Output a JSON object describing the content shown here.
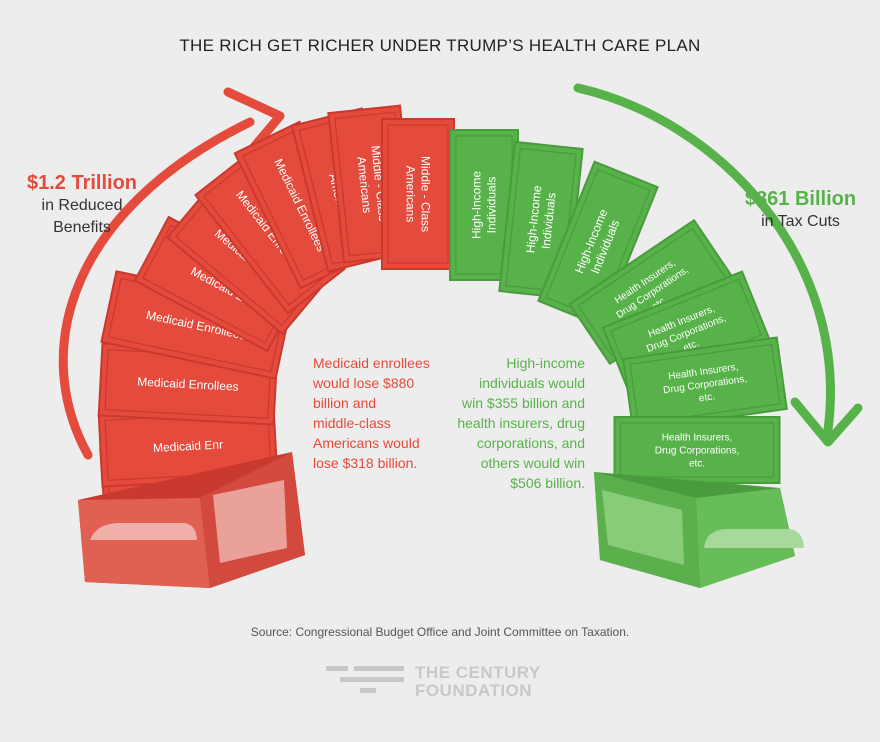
{
  "title": "THE RICH GET RICHER UNDER TRUMP’S HEALTH CARE PLAN",
  "left_total": {
    "amount": "$1.2 Trillion",
    "line1": "in Reduced",
    "line2": "Benefits"
  },
  "right_total": {
    "amount": "$861 Billion",
    "line1": "in Tax Cuts"
  },
  "red_note": [
    "Medicaid enrollees",
    "would lose $880",
    "billion and",
    "middle-class",
    "Americans would",
    "lose $318 billion."
  ],
  "green_note": [
    "High-income",
    "individuals would",
    "win $355 billion and",
    "health insurers, drug",
    "corporations, and",
    "others would win",
    "$506 billion."
  ],
  "source": "Source: Congressional Budget Office and Joint Committee on Taxation.",
  "logo": {
    "line1": "THE CENTURY",
    "line2": "FOUNDATION"
  },
  "colors": {
    "red": "#e54b3c",
    "red_dark": "#c9392d",
    "green": "#58b24a",
    "green_dark": "#4a9a3e",
    "background": "#ededed"
  },
  "bills": {
    "medicaid": "Medicaid Enrollees",
    "middle_class": [
      "Middle - Class",
      "Americans"
    ],
    "high_income": [
      "High-Income",
      "Individuals"
    ],
    "insurers": [
      "Health Insurers,",
      "Drug Corporations,",
      "etc."
    ]
  },
  "left_bills": [
    {
      "lines": [
        "Medicaid Enrollees"
      ],
      "visible": "Medicaid Enr"
    },
    {
      "lines": [
        "Medicaid Enrollees"
      ],
      "visible": "Medicaid Enr"
    },
    {
      "lines": [
        "Medicaid Enrollees"
      ]
    },
    {
      "lines": [
        "Medicaid Enrollees"
      ]
    },
    {
      "lines": [
        "Medicaid Enrollees"
      ],
      "visible": "Medicaid E"
    },
    {
      "lines": [
        "Medicaid Enrollees"
      ],
      "visible": "Medicaid Enroll"
    },
    {
      "lines": [
        "Medicaid Enrollees"
      ]
    },
    {
      "lines": [
        "Medicaid Enrollees"
      ]
    },
    {
      "lines": [
        "Middle - Class",
        "Americans"
      ],
      "visible": [
        "Middle - Class",
        "Americ"
      ]
    },
    {
      "lines": [
        "Middle - Class",
        "Americans"
      ],
      "visible": [
        "Middle - Class",
        "Americans"
      ]
    },
    {
      "lines": [
        "Middle - Class",
        "Americans"
      ]
    }
  ],
  "right_bills": [
    {
      "lines": [
        "High-Income",
        "Individuals"
      ]
    },
    {
      "lines": [
        "High-Income",
        "Individuals"
      ]
    },
    {
      "lines": [
        "High-Income",
        "Individuals"
      ]
    },
    {
      "lines": [
        "Health Insurers,",
        "Drug Corporations,",
        "etc."
      ]
    },
    {
      "lines": [
        "Health Insurers,",
        "Drug Corporations,",
        "etc."
      ]
    },
    {
      "lines": [
        "Health Insurers,",
        "Drug Corporations,",
        "etc."
      ]
    },
    {
      "lines": [
        "Health Insurers,",
        "Drug Corporations,",
        "etc."
      ]
    }
  ]
}
